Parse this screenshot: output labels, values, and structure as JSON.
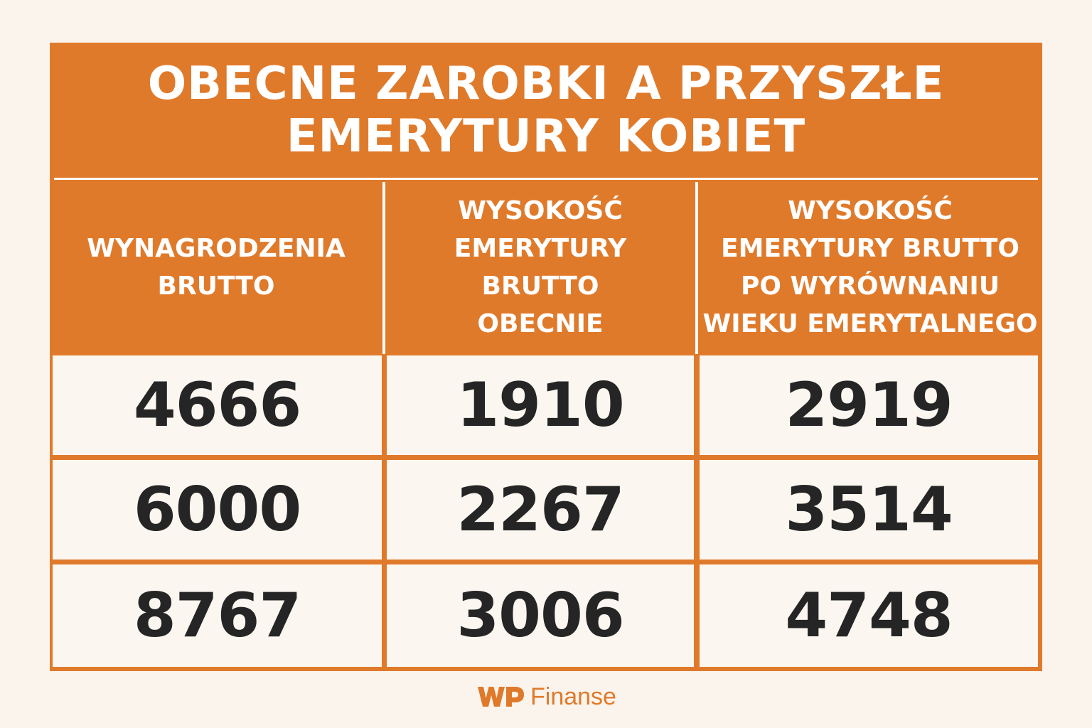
{
  "colors": {
    "accent": "#e07a2b",
    "background": "#fbf4ec",
    "cell_background": "#fbf6f0",
    "number_text": "#252525",
    "header_text": "#ffffff"
  },
  "title": {
    "line1": "OBECNE ZAROBKI A PRZYSZŁE",
    "line2": "EMERYTURY KOBIET"
  },
  "headers": [
    {
      "lines": [
        "WYNAGRODZENIA",
        "BRUTTO"
      ]
    },
    {
      "lines": [
        "WYSOKOŚĆ",
        "EMERYTURY",
        "BRUTTO",
        "OBECNIE"
      ]
    },
    {
      "lines": [
        "WYSOKOŚĆ",
        "EMERYTURY BRUTTO",
        "PO WYRÓWNANIU",
        "WIEKU EMERYTALNEGO"
      ]
    }
  ],
  "chart_data": {
    "type": "table",
    "title": "OBECNE ZAROBKI A PRZYSZŁE EMERYTURY KOBIET",
    "columns": [
      "WYNAGRODZENIA BRUTTO",
      "WYSOKOŚĆ EMERYTURY BRUTTO OBECNIE",
      "WYSOKOŚĆ EMERYTURY BRUTTO PO WYRÓWNANIU WIEKU EMERYTALNEGO"
    ],
    "rows": [
      [
        "4666",
        "1910",
        "2919"
      ],
      [
        "6000",
        "2267",
        "3514"
      ],
      [
        "8767",
        "3006",
        "4748"
      ]
    ]
  },
  "logo": {
    "mark": "WP",
    "text": "Finanse"
  }
}
